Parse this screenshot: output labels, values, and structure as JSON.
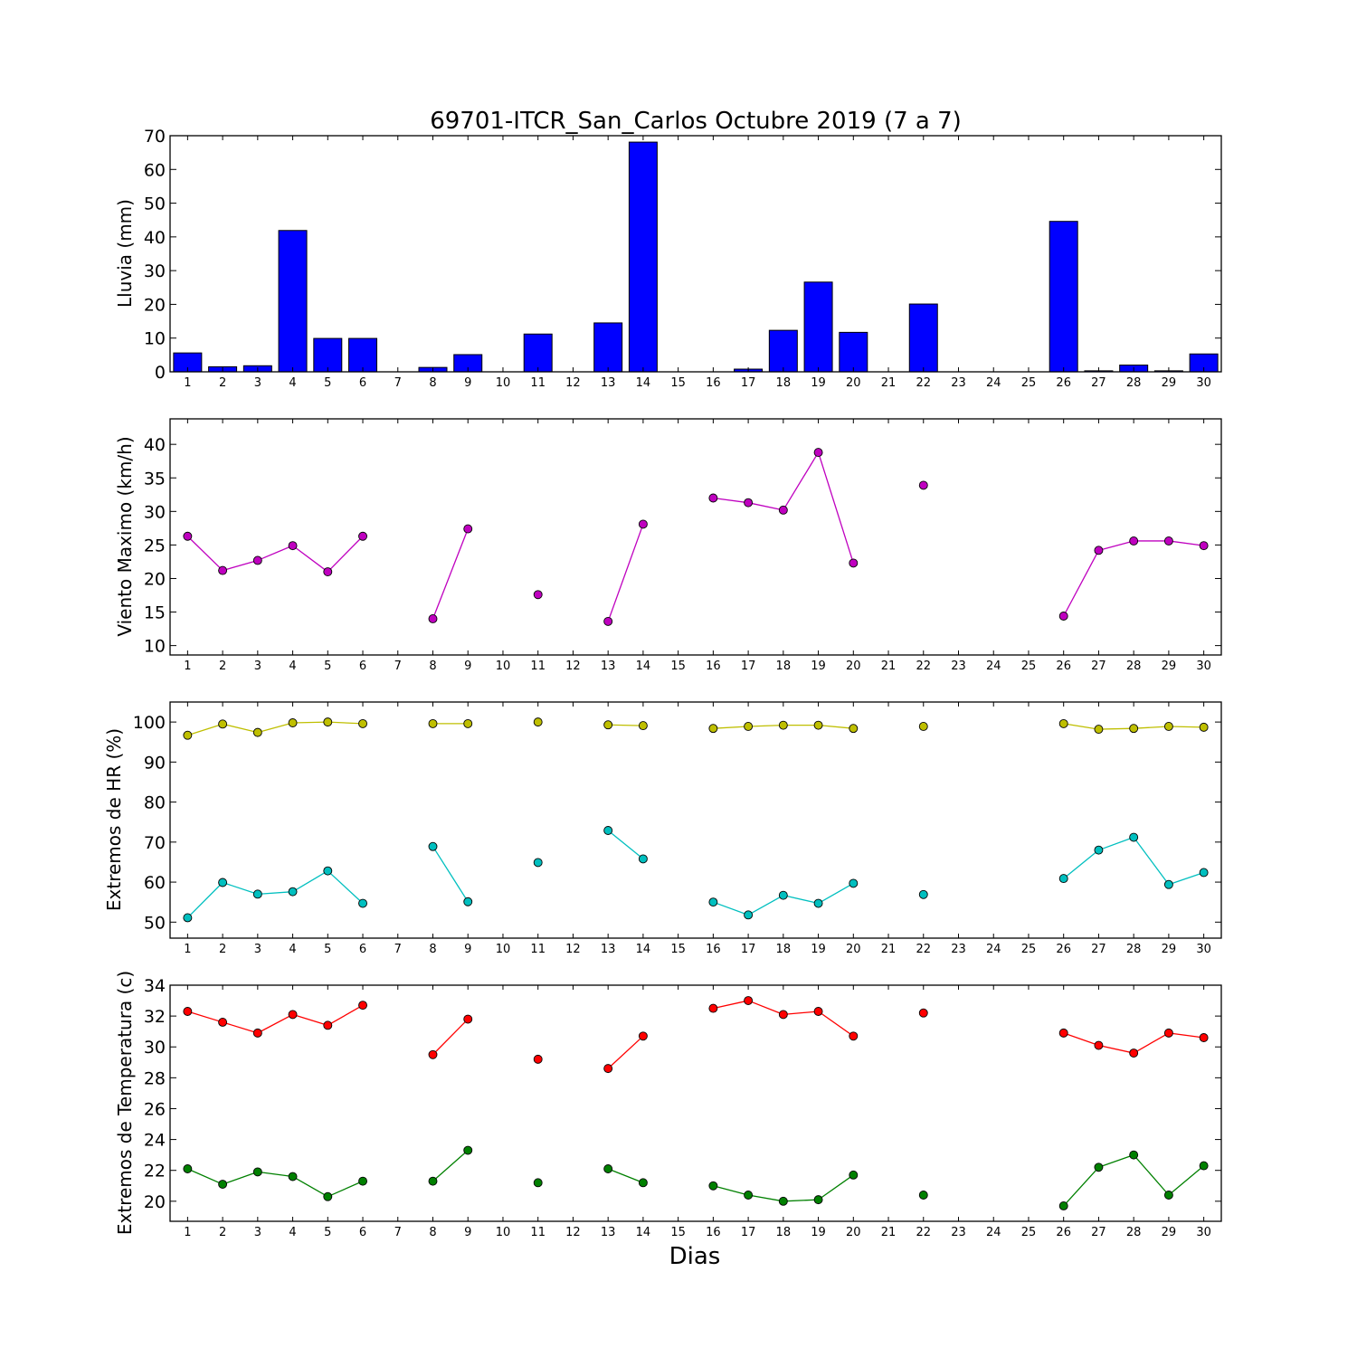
{
  "figure_title": "69701-ITCR_San_Carlos Octubre 2019  (7 a 7)",
  "x_axis_label": "Dias",
  "colors": {
    "rain_bar": "#0000ff",
    "wind": "#bf00bf",
    "hr_max": "#bfbf00",
    "hr_min": "#00bfbf",
    "temp_max": "#ff0000",
    "temp_min": "#008000"
  },
  "chart_data": [
    {
      "type": "bar",
      "ylabel": "Lluvia (mm)",
      "ylim": [
        0,
        70
      ],
      "yticks": [
        0,
        10,
        20,
        30,
        40,
        50,
        60,
        70
      ],
      "xlim": [
        0.5,
        30.5
      ],
      "x": [
        1,
        2,
        3,
        4,
        5,
        6,
        7,
        8,
        9,
        10,
        11,
        12,
        13,
        14,
        15,
        16,
        17,
        18,
        19,
        20,
        21,
        22,
        23,
        24,
        25,
        26,
        27,
        28,
        29,
        30
      ],
      "series": [
        {
          "values": [
            5.6,
            1.5,
            1.8,
            41.9,
            9.9,
            9.9,
            0,
            1.3,
            5.1,
            0,
            11.2,
            0,
            14.5,
            68.1,
            0,
            0,
            0.8,
            12.3,
            26.6,
            11.7,
            0,
            20.1,
            0,
            0,
            0,
            44.6,
            0.3,
            2.0,
            0.3,
            5.3
          ]
        }
      ]
    },
    {
      "type": "line",
      "ylabel": "Viento Maximo (km/h)",
      "ylim": [
        8.6,
        43.8
      ],
      "yticks": [
        10,
        15,
        20,
        25,
        30,
        35,
        40
      ],
      "xlim": [
        0.5,
        30.5
      ],
      "x": [
        1,
        2,
        3,
        4,
        5,
        6,
        7,
        8,
        9,
        10,
        11,
        12,
        13,
        14,
        15,
        16,
        17,
        18,
        19,
        20,
        21,
        22,
        23,
        24,
        25,
        26,
        27,
        28,
        29,
        30
      ],
      "series": [
        {
          "values": [
            26.3,
            21.2,
            22.7,
            24.9,
            21.0,
            26.3,
            null,
            14.0,
            27.4,
            null,
            17.6,
            null,
            13.6,
            28.1,
            null,
            32.0,
            31.3,
            30.2,
            38.8,
            22.3,
            null,
            33.9,
            null,
            null,
            null,
            14.4,
            24.2,
            25.6,
            25.6,
            24.9
          ]
        }
      ]
    },
    {
      "type": "line",
      "ylabel": "Extremos de HR (%)",
      "ylim": [
        46,
        105
      ],
      "yticks": [
        50,
        60,
        70,
        80,
        90,
        100
      ],
      "xlim": [
        0.5,
        30.5
      ],
      "x": [
        1,
        2,
        3,
        4,
        5,
        6,
        7,
        8,
        9,
        10,
        11,
        12,
        13,
        14,
        15,
        16,
        17,
        18,
        19,
        20,
        21,
        22,
        23,
        24,
        25,
        26,
        27,
        28,
        29,
        30
      ],
      "series": [
        {
          "values": [
            96.7,
            99.5,
            97.4,
            99.8,
            100,
            99.6,
            null,
            99.6,
            99.6,
            null,
            100,
            null,
            99.3,
            99.1,
            null,
            98.4,
            98.9,
            99.2,
            99.2,
            98.4,
            null,
            98.9,
            null,
            null,
            null,
            99.6,
            98.2,
            98.4,
            98.9,
            98.7
          ]
        },
        {
          "values": [
            51.1,
            59.9,
            57.0,
            57.6,
            62.8,
            54.7,
            null,
            68.9,
            55.1,
            null,
            64.9,
            null,
            72.9,
            65.8,
            null,
            55.0,
            51.8,
            56.7,
            54.7,
            59.7,
            null,
            56.9,
            null,
            null,
            null,
            60.9,
            68.0,
            71.2,
            59.4,
            62.4
          ]
        }
      ]
    },
    {
      "type": "line",
      "ylabel": "Extremos de Temperatura (c)",
      "ylim": [
        18.7,
        34
      ],
      "yticks": [
        20,
        22,
        24,
        26,
        28,
        30,
        32,
        34
      ],
      "xlim": [
        0.5,
        30.5
      ],
      "x": [
        1,
        2,
        3,
        4,
        5,
        6,
        7,
        8,
        9,
        10,
        11,
        12,
        13,
        14,
        15,
        16,
        17,
        18,
        19,
        20,
        21,
        22,
        23,
        24,
        25,
        26,
        27,
        28,
        29,
        30
      ],
      "series": [
        {
          "values": [
            32.3,
            31.6,
            30.9,
            32.1,
            31.4,
            32.7,
            null,
            29.5,
            31.8,
            null,
            29.2,
            null,
            28.6,
            30.7,
            null,
            32.5,
            33.0,
            32.1,
            32.3,
            30.7,
            null,
            32.2,
            null,
            null,
            null,
            30.9,
            30.1,
            29.6,
            30.9,
            30.6
          ]
        },
        {
          "values": [
            22.1,
            21.1,
            21.9,
            21.6,
            20.3,
            21.3,
            null,
            21.3,
            23.3,
            null,
            21.2,
            null,
            22.1,
            21.2,
            null,
            21.0,
            20.4,
            20.0,
            20.1,
            21.7,
            null,
            20.4,
            null,
            null,
            null,
            19.7,
            22.2,
            23.0,
            20.4,
            22.3
          ]
        }
      ]
    }
  ]
}
